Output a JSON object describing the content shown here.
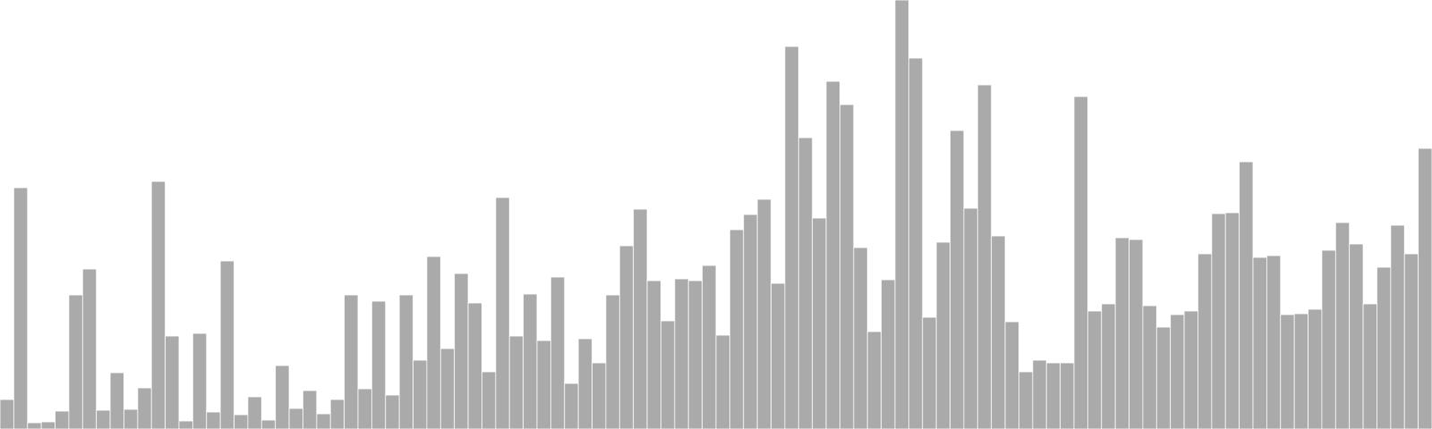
{
  "chart_data": {
    "type": "bar",
    "title": "",
    "xlabel": "",
    "ylabel": "",
    "grid": false,
    "legend": "none",
    "bar_color": "#aaaaaa",
    "bar_edge_color": "#ffffff",
    "ylim": [
      0,
      480
    ],
    "values": [
      33,
      270,
      7,
      8,
      20,
      150,
      179,
      21,
      63,
      22,
      46,
      277,
      104,
      9,
      107,
      19,
      188,
      16,
      36,
      10,
      71,
      23,
      43,
      17,
      33,
      150,
      45,
      143,
      38,
      150,
      77,
      193,
      90,
      174,
      141,
      64,
      259,
      104,
      151,
      99,
      170,
      51,
      101,
      74,
      150,
      205,
      246,
      166,
      121,
      168,
      166,
      183,
      105,
      223,
      240,
      257,
      163,
      428,
      326,
      236,
      389,
      363,
      203,
      109,
      167,
      480,
      415,
      125,
      209,
      334,
      247,
      385,
      216,
      120,
      64,
      77,
      74,
      74,
      372,
      132,
      140,
      214,
      212,
      138,
      114,
      128,
      132,
      196,
      241,
      242,
      299,
      192,
      194,
      128,
      129,
      134,
      200,
      231,
      207,
      140,
      181,
      228,
      196,
      314
    ]
  }
}
